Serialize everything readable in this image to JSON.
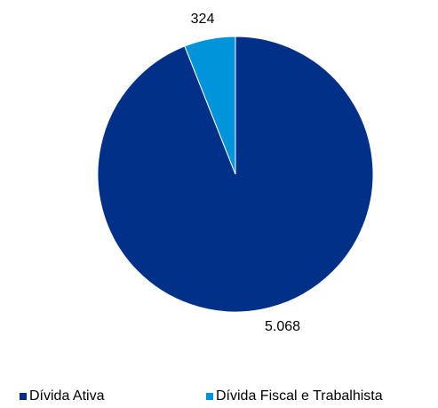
{
  "chart_data": {
    "type": "pie",
    "categories": [
      "Dívida Ativa",
      "Dívida Fiscal e Trabalhista"
    ],
    "values": [
      5068,
      324
    ],
    "value_labels": [
      "5.068",
      "324"
    ],
    "colors": [
      "#003087",
      "#0094DA"
    ],
    "legend_position": "bottom",
    "start_angle": "top",
    "direction": "clockwise"
  },
  "legend": {
    "items": [
      {
        "label": "Dívida Ativa",
        "color": "#003087"
      },
      {
        "label": "Dívida Fiscal e Trabalhista",
        "color": "#0094DA"
      }
    ]
  }
}
